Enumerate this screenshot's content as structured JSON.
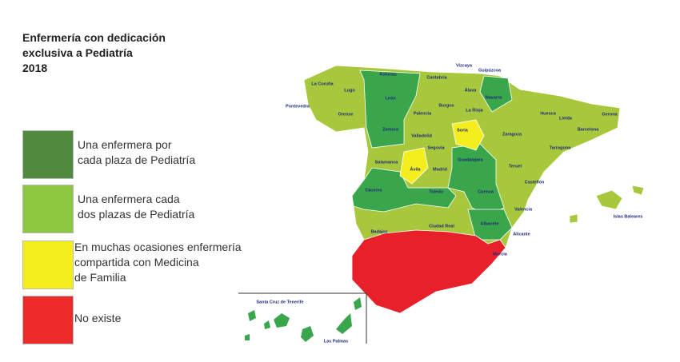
{
  "title": [
    "Enfermería con dedicación",
    "exclusiva a Pediatría",
    "2018"
  ],
  "legend": [
    {
      "label": [
        "Una enfermera por",
        "cada plaza de Pediatría"
      ],
      "color": "#4f8a3e"
    },
    {
      "label": [
        "Una enfermera cada",
        "dos plazas de Pediatría"
      ],
      "color": "#8dc63f"
    },
    {
      "label": [
        "En muchas ocasiones enfermería",
        "compartida con Medicina",
        "de Familia"
      ],
      "color": "#f5ee1f"
    },
    {
      "label": [
        "No existe"
      ],
      "color": "#ec2a2a"
    }
  ],
  "map": {
    "labels": [
      "La Coruña",
      "Lugo",
      "Pontevedra",
      "Orense",
      "Asturias",
      "León",
      "Zamora",
      "Cantabria",
      "Vizcaya",
      "Guipúzcoa",
      "Álava",
      "Navarra",
      "Burgos",
      "Palencia",
      "La Rioja",
      "Huesca",
      "Lleida",
      "Gerona",
      "Barcelona",
      "Tarragona",
      "Zaragoza",
      "Soria",
      "Valladolid",
      "Segovia",
      "Salamanca",
      "Ávila",
      "Madrid",
      "Guadalajara",
      "Teruel",
      "Castellón",
      "Cáceres",
      "Toledo",
      "Cuenca",
      "Valencia",
      "Badajoz",
      "Ciudad Real",
      "Albacete",
      "Alicante",
      "Murcia",
      "Islas Baleares",
      "Santa Cruz de Tenerife",
      "Las Palmas"
    ]
  }
}
